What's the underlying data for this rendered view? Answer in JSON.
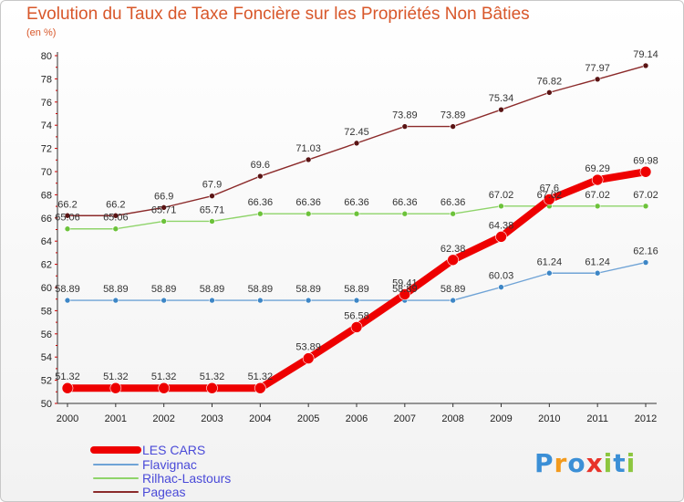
{
  "chart_data": {
    "type": "line",
    "title": "Evolution du Taux de Taxe Foncière sur les Propriétés Non Bâties",
    "ylabel": "(en %)",
    "xlabel": "",
    "ylim": [
      50,
      80
    ],
    "yticks": [
      50,
      52,
      54,
      56,
      58,
      60,
      62,
      64,
      66,
      68,
      70,
      72,
      74,
      76,
      78,
      80
    ],
    "categories": [
      "2000",
      "2001",
      "2002",
      "2003",
      "2004",
      "2005",
      "2006",
      "2007",
      "2008",
      "2009",
      "2010",
      "2011",
      "2012"
    ],
    "series": [
      {
        "name": "Pageas",
        "color": "#8b2a2a",
        "point_color": "#5a1414",
        "line_width": 1.4,
        "point_radius": 3,
        "values": [
          66.2,
          66.2,
          66.9,
          67.9,
          69.6,
          71.03,
          72.45,
          73.89,
          73.89,
          75.34,
          76.82,
          77.97,
          79.14
        ],
        "labels": [
          "66.2",
          "66.2",
          "66.9",
          "67.9",
          "69.6",
          "71.03",
          "72.45",
          "73.89",
          "73.89",
          "75.34",
          "76.82",
          "77.97",
          "79.14"
        ]
      },
      {
        "name": "Rilhac-Lastours",
        "color": "#8fd46a",
        "point_color": "#6cc23a",
        "line_width": 1.4,
        "point_radius": 3,
        "values": [
          65.06,
          65.06,
          65.71,
          65.71,
          66.36,
          66.36,
          66.36,
          66.36,
          66.36,
          67.02,
          67.02,
          67.02,
          67.02
        ],
        "labels": [
          "65.06",
          "65.06",
          "65.71",
          "65.71",
          "66.36",
          "66.36",
          "66.36",
          "66.36",
          "66.36",
          "67.02",
          "67.02",
          "67.02",
          "67.02"
        ]
      },
      {
        "name": "Flavignac",
        "color": "#6fa3d6",
        "point_color": "#3d86c6",
        "line_width": 1.4,
        "point_radius": 3,
        "values": [
          58.89,
          58.89,
          58.89,
          58.89,
          58.89,
          58.89,
          58.89,
          58.89,
          58.89,
          60.03,
          61.24,
          61.24,
          62.16
        ],
        "labels": [
          "58.89",
          "58.89",
          "58.89",
          "58.89",
          "58.89",
          "58.89",
          "58.89",
          "58.89",
          "58.89",
          "60.03",
          "61.24",
          "61.24",
          "62.16"
        ]
      },
      {
        "name": "LES CARS",
        "color": "#ee0000",
        "point_color": "#ee0000",
        "line_width": 8,
        "point_radius": 6,
        "values": [
          51.32,
          51.32,
          51.32,
          51.32,
          51.32,
          53.89,
          56.58,
          59.41,
          62.38,
          64.38,
          67.6,
          69.29,
          69.98
        ],
        "labels": [
          "51.32",
          "51.32",
          "51.32",
          "51.32",
          "51.32",
          "53.89",
          "56.58",
          "59.41",
          "62.38",
          "64.38",
          "67.6",
          "69.29",
          "69.98"
        ]
      }
    ],
    "legend_order": [
      "LES CARS",
      "Flavignac",
      "Rilhac-Lastours",
      "Pageas"
    ],
    "legend_position": "bottom-left",
    "grid": false
  },
  "logo": {
    "letters": [
      "P",
      "r",
      "o",
      "x",
      "i",
      "t",
      "i"
    ],
    "colors": [
      "#3b8fd6",
      "#f39a1c",
      "#3b8fd6",
      "#e8332a",
      "#8cc63f",
      "#3b8fd6",
      "#8cc63f"
    ]
  }
}
